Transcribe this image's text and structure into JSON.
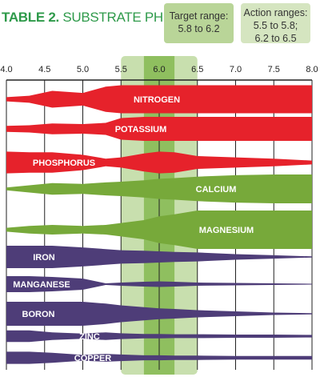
{
  "header": {
    "title_num": "TABLE 2.",
    "title_text": "SUBSTRATE PH",
    "target_box": [
      "Target range:",
      "5.8 to 6.2"
    ],
    "action_box": [
      "Action ranges:",
      "5.5 to 5.8;",
      "6.2 to 6.5"
    ]
  },
  "colors": {
    "green_accent": "#2e9a4a",
    "red": "#e6222b",
    "green": "#77a93a",
    "purple": "#4e3d78",
    "target_fill": "#8fbf5f",
    "action_fill": "#c8dfae"
  },
  "chart_data": {
    "type": "area",
    "title": "SUBSTRATE PH",
    "xlim": [
      4.0,
      8.0
    ],
    "x_ticks": [
      "4.0",
      "4.5",
      "5.0",
      "5.5",
      "6.0",
      "6.5",
      "7.0",
      "7.5",
      "8.0"
    ],
    "target_range": [
      5.8,
      6.2
    ],
    "action_ranges": [
      [
        5.5,
        5.8
      ],
      [
        6.2,
        6.5
      ]
    ],
    "ph": [
      4.0,
      4.3,
      4.6,
      5.0,
      5.3,
      5.5,
      5.8,
      6.0,
      6.2,
      6.5,
      7.0,
      7.5,
      8.0
    ],
    "nutrients": [
      {
        "name": "NITROGEN",
        "group": "red",
        "availability": [
          0.15,
          0.25,
          0.6,
          0.45,
          0.9,
          1.0,
          1.0,
          1.0,
          1.0,
          1.0,
          1.0,
          1.0,
          1.0
        ]
      },
      {
        "name": "POTASSIUM",
        "group": "red",
        "availability": [
          0.25,
          0.3,
          0.45,
          0.4,
          0.5,
          0.9,
          1.0,
          1.0,
          1.0,
          1.0,
          1.0,
          1.0,
          1.0
        ]
      },
      {
        "name": "PHOSPHORUS",
        "group": "red",
        "availability": [
          0.85,
          0.8,
          0.8,
          0.6,
          0.3,
          0.4,
          0.7,
          0.85,
          0.8,
          0.5,
          0.4,
          0.3,
          0.15
        ]
      },
      {
        "name": "CALCIUM",
        "group": "green",
        "availability": [
          0.1,
          0.25,
          0.4,
          0.35,
          0.45,
          0.5,
          0.6,
          0.7,
          0.75,
          0.85,
          0.95,
          1.0,
          1.0
        ]
      },
      {
        "name": "MAGNESIUM",
        "group": "green",
        "availability": [
          0.1,
          0.2,
          0.25,
          0.2,
          0.25,
          0.35,
          0.5,
          0.7,
          0.8,
          1.0,
          1.0,
          1.0,
          1.0
        ]
      },
      {
        "name": "IRON",
        "group": "purple",
        "availability": [
          1.0,
          1.0,
          1.0,
          0.85,
          0.7,
          0.6,
          0.55,
          0.5,
          0.45,
          0.4,
          0.25,
          0.15,
          0.05
        ]
      },
      {
        "name": "MANGANESE",
        "group": "purple",
        "availability": [
          1.0,
          1.0,
          0.9,
          0.7,
          0.1,
          0.2,
          0.3,
          0.35,
          0.3,
          0.2,
          0.15,
          0.1,
          0.05
        ]
      },
      {
        "name": "BORON",
        "group": "purple",
        "availability": [
          1.0,
          1.0,
          1.0,
          1.0,
          0.85,
          0.7,
          0.55,
          0.45,
          0.4,
          0.3,
          0.2,
          0.1,
          0.05
        ]
      },
      {
        "name": "ZINC",
        "group": "purple",
        "availability": [
          0.9,
          0.9,
          0.6,
          0.4,
          0.6,
          0.45,
          0.35,
          0.35,
          0.3,
          0.3,
          0.25,
          0.25,
          0.2
        ]
      },
      {
        "name": "COPPER",
        "group": "purple",
        "availability": [
          0.85,
          0.85,
          0.7,
          0.4,
          0.55,
          0.45,
          0.35,
          0.35,
          0.3,
          0.3,
          0.25,
          0.25,
          0.25
        ]
      }
    ]
  }
}
